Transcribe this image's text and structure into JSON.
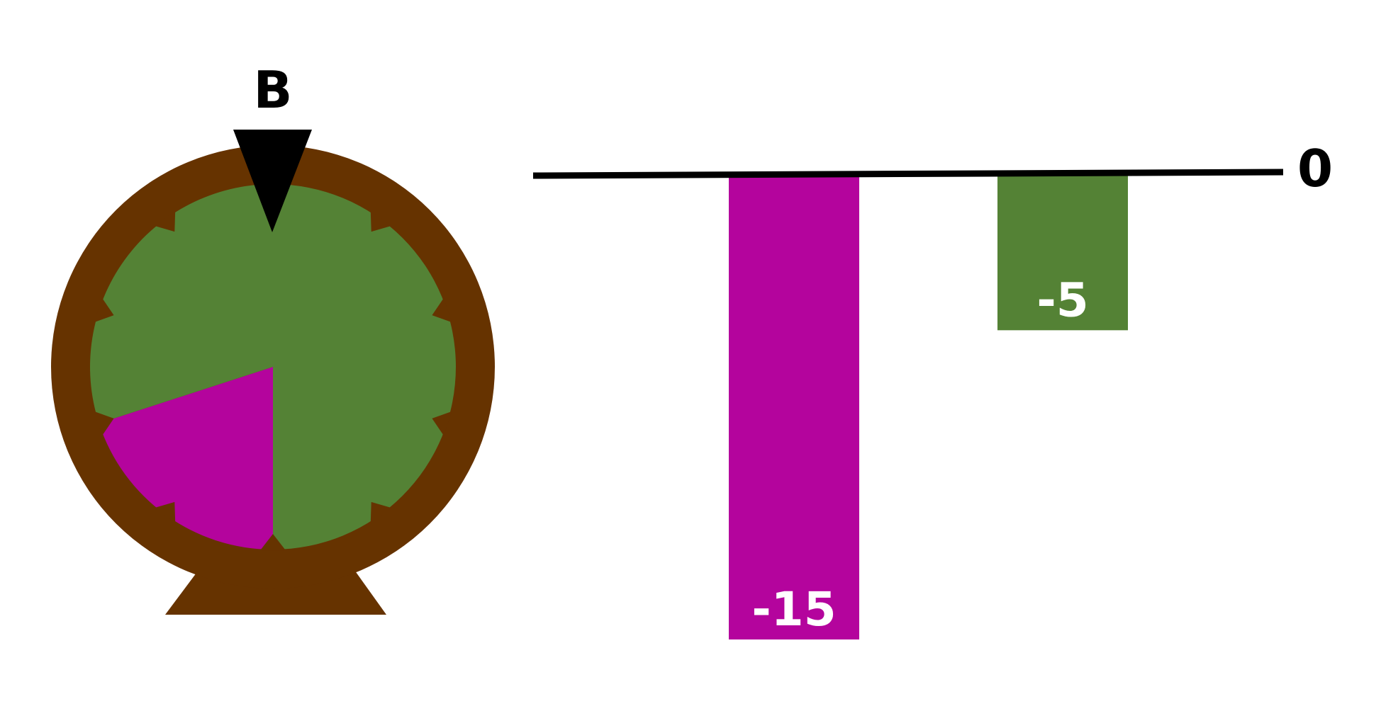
{
  "spinner": {
    "label": "B",
    "colors": {
      "rim": "#663300",
      "green": "#548235",
      "magenta": "#b4049d",
      "pointer": "#000000"
    },
    "sectors": 10,
    "magenta_fraction": 0.2
  },
  "chart_data": {
    "type": "bar",
    "zero_label": "0",
    "categories": [
      "magenta",
      "green"
    ],
    "values": [
      -15,
      -5
    ],
    "value_labels": [
      "-15",
      "-5"
    ],
    "colors": [
      "#b4049d",
      "#548235"
    ],
    "ylim": [
      -15,
      0
    ]
  }
}
